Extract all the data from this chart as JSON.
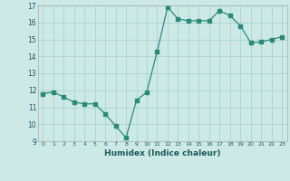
{
  "x": [
    0,
    1,
    2,
    3,
    4,
    5,
    6,
    7,
    8,
    9,
    10,
    11,
    12,
    13,
    14,
    15,
    16,
    17,
    18,
    19,
    20,
    21,
    22,
    23
  ],
  "y": [
    11.8,
    11.9,
    11.6,
    11.3,
    11.2,
    11.2,
    10.6,
    9.9,
    9.2,
    11.4,
    11.9,
    14.3,
    16.9,
    16.2,
    16.1,
    16.1,
    16.1,
    16.7,
    16.4,
    15.8,
    14.8,
    14.85,
    15.0,
    15.15
  ],
  "line_color": "#2a8a7a",
  "marker_color": "#2a8a7a",
  "bg_color": "#cce9e5",
  "grid_color": "#aad4ce",
  "xlabel": "Humidex (Indice chaleur)",
  "ylim": [
    9,
    17
  ],
  "xlim": [
    -0.5,
    23.5
  ],
  "yticks": [
    9,
    10,
    11,
    12,
    13,
    14,
    15,
    16,
    17
  ],
  "xticks": [
    0,
    1,
    2,
    3,
    4,
    5,
    6,
    7,
    8,
    9,
    10,
    11,
    12,
    13,
    14,
    15,
    16,
    17,
    18,
    19,
    20,
    21,
    22,
    23
  ]
}
